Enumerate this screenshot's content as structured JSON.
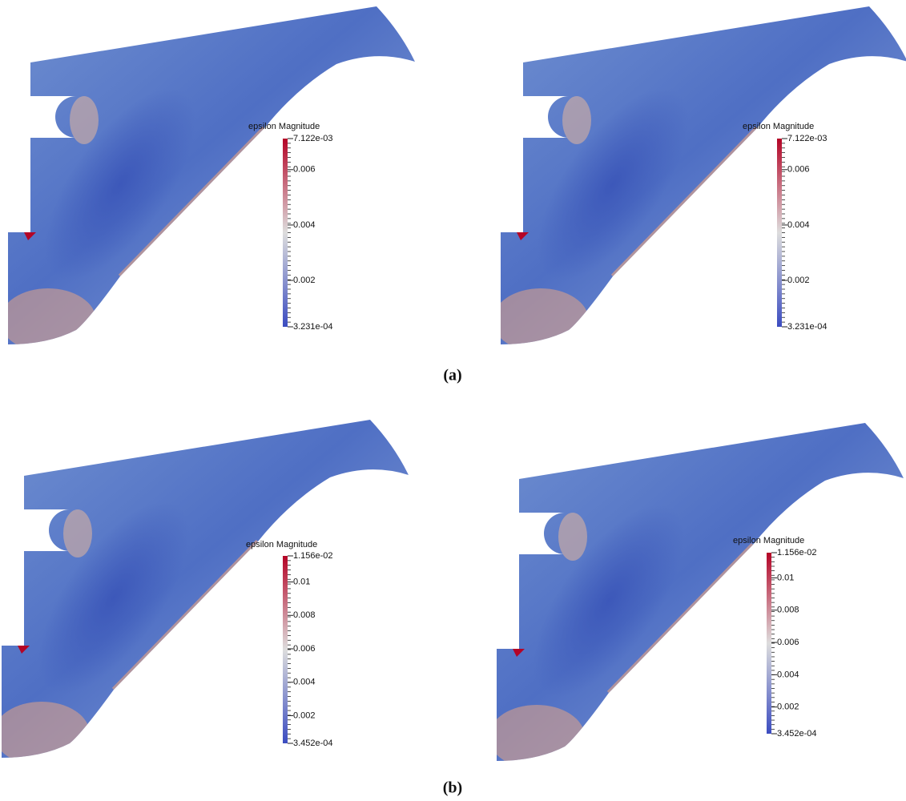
{
  "panels": [
    {
      "colorbar": {
        "title": "epsilon Magnitude",
        "lim": [
          0.0003231,
          0.007122
        ],
        "ticks": [
          {
            "value": 0.0003231,
            "label": "3.231e-04"
          },
          0.002,
          0.004,
          0.006,
          {
            "value": 0.007122,
            "label": "7.122e-03"
          }
        ]
      }
    },
    {
      "colorbar": {
        "title": "epsilon Magnitude",
        "lim": [
          0.0003231,
          0.007122
        ],
        "ticks": [
          {
            "value": 0.0003231,
            "label": "3.231e-04"
          },
          0.002,
          0.004,
          0.006,
          {
            "value": 0.007122,
            "label": "7.122e-03"
          }
        ]
      }
    },
    {
      "colorbar": {
        "title": "epsilon Magnitude",
        "lim": [
          0.0003452,
          0.01156
        ],
        "ticks": [
          {
            "value": 0.0003452,
            "label": "3.452e-04"
          },
          0.002,
          0.004,
          0.006,
          0.008,
          0.01,
          {
            "value": 0.01156,
            "label": "1.156e-02"
          }
        ]
      }
    },
    {
      "colorbar": {
        "title": "epsilon Magnitude",
        "lim": [
          0.0003452,
          0.01156
        ],
        "ticks": [
          {
            "value": 0.0003452,
            "label": "3.452e-04"
          },
          0.002,
          0.004,
          0.006,
          0.008,
          0.01,
          {
            "value": 0.01156,
            "label": "1.156e-02"
          }
        ]
      }
    }
  ],
  "captions": [
    "(a)",
    "(b)"
  ]
}
